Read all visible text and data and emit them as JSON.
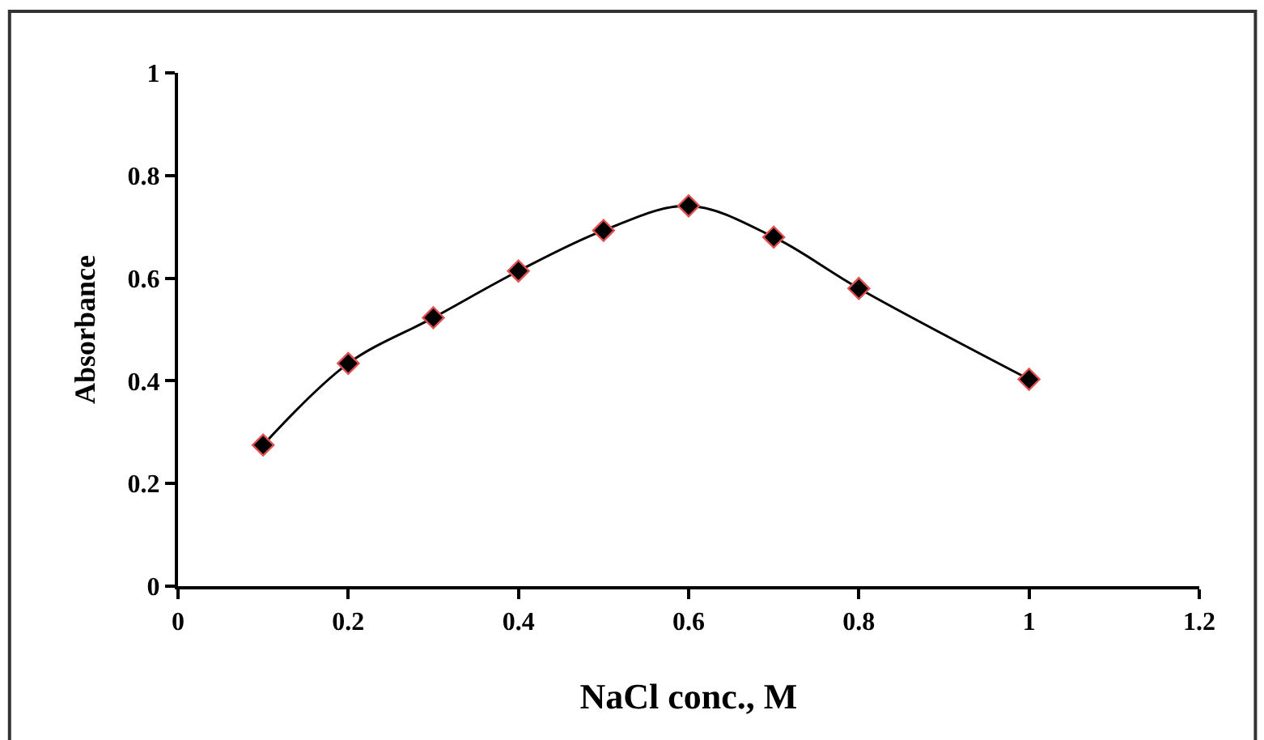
{
  "chart_data": {
    "type": "line",
    "xlabel": "NaCl conc., M",
    "ylabel": "Absorbance",
    "x": [
      0.1,
      0.2,
      0.3,
      0.4,
      0.5,
      0.6,
      0.7,
      0.8,
      1.0
    ],
    "series": [
      {
        "color": "#000000",
        "values": [
          0.275,
          0.434,
          0.523,
          0.614,
          0.693,
          0.741,
          0.68,
          0.58,
          0.403
        ]
      }
    ],
    "xlim": [
      0,
      1.2
    ],
    "xticks": [
      0,
      0.2,
      0.4,
      0.6,
      0.8,
      1,
      1.2
    ],
    "ylim": [
      0,
      1
    ],
    "yticks": [
      0,
      0.2,
      0.4,
      0.6,
      0.8,
      1
    ],
    "marker": "diamond",
    "line_style": "solid",
    "legend": false
  }
}
